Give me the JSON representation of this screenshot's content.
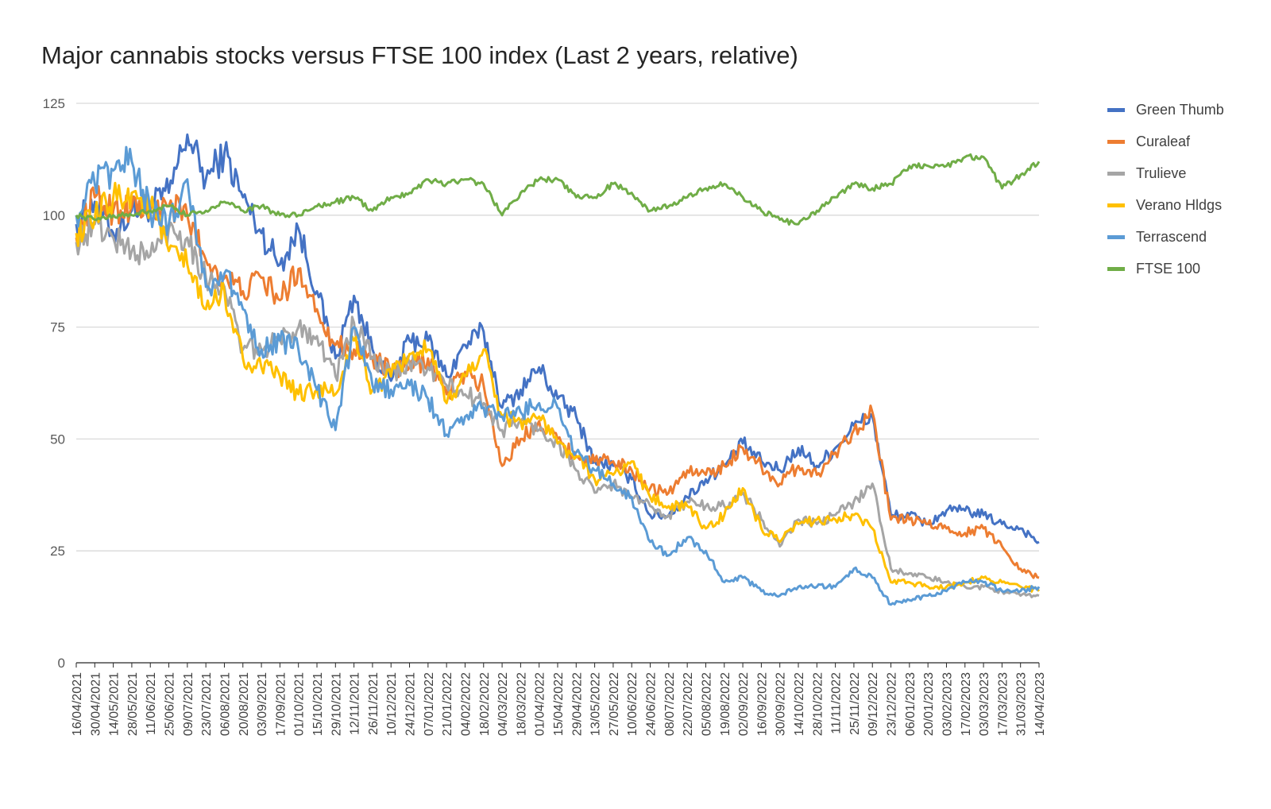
{
  "chart_data": {
    "type": "line",
    "title": "Major cannabis stocks versus FTSE 100 index (Last 2 years, relative)",
    "xlabel": "",
    "ylabel": "",
    "ylim": [
      0,
      125
    ],
    "yticks": [
      "0",
      "25",
      "50",
      "75",
      "100",
      "125"
    ],
    "grid": true,
    "legend_position": "right",
    "x": [
      "16/04/2021",
      "30/04/2021",
      "14/05/2021",
      "28/05/2021",
      "11/06/2021",
      "25/06/2021",
      "09/07/2021",
      "23/07/2021",
      "06/08/2021",
      "20/08/2021",
      "03/09/2021",
      "17/09/2021",
      "01/10/2021",
      "15/10/2021",
      "29/10/2021",
      "12/11/2021",
      "26/11/2021",
      "10/12/2021",
      "24/12/2021",
      "07/01/2022",
      "21/01/2022",
      "04/02/2022",
      "18/02/2022",
      "04/03/2022",
      "18/03/2022",
      "01/04/2022",
      "15/04/2022",
      "29/04/2022",
      "13/05/2022",
      "27/05/2022",
      "10/06/2022",
      "24/06/2022",
      "08/07/2022",
      "22/07/2022",
      "05/08/2022",
      "19/08/2022",
      "02/09/2022",
      "16/09/2022",
      "30/09/2022",
      "14/10/2022",
      "28/10/2022",
      "11/11/2022",
      "25/11/2022",
      "09/12/2022",
      "23/12/2022",
      "06/01/2023",
      "20/01/2023",
      "03/02/2023",
      "17/02/2023",
      "03/03/2023",
      "17/03/2023",
      "31/03/2023",
      "14/04/2023"
    ],
    "series": [
      {
        "name": "Green Thumb",
        "color": "#4472C4",
        "values": [
          98,
          103,
          96,
          101,
          102,
          105,
          118,
          108,
          114,
          104,
          96,
          89,
          97,
          83,
          68,
          82,
          70,
          63,
          72,
          72,
          64,
          71,
          74,
          57,
          61,
          66,
          59,
          55,
          45,
          44,
          41,
          33,
          33,
          37,
          41,
          44,
          49,
          45,
          43,
          48,
          44,
          48,
          53,
          55,
          33,
          33,
          31,
          34,
          34,
          33,
          31,
          30,
          27
        ]
      },
      {
        "name": "Curaleaf",
        "color": "#ED7D31",
        "values": [
          95,
          104,
          101,
          102,
          101,
          102,
          100,
          90,
          86,
          83,
          86,
          81,
          88,
          79,
          71,
          70,
          68,
          65,
          66,
          68,
          60,
          65,
          62,
          44,
          50,
          54,
          50,
          46,
          45,
          45,
          43,
          39,
          38,
          43,
          42,
          44,
          48,
          44,
          40,
          44,
          42,
          47,
          52,
          56,
          32,
          32,
          31,
          30,
          29,
          30,
          26,
          21,
          19
        ]
      },
      {
        "name": "Trulieve",
        "color": "#A5A5A5",
        "values": [
          94,
          98,
          95,
          92,
          91,
          97,
          95,
          86,
          84,
          70,
          70,
          72,
          75,
          73,
          64,
          76,
          68,
          64,
          67,
          66,
          62,
          60,
          58,
          52,
          54,
          52,
          49,
          43,
          38,
          40,
          37,
          35,
          33,
          36,
          35,
          35,
          38,
          32,
          26,
          32,
          31,
          33,
          36,
          40,
          21,
          20,
          19,
          18,
          17,
          17,
          16,
          15,
          15
        ]
      },
      {
        "name": "Verano Hldgs",
        "color": "#FFC000",
        "values": [
          96,
          99,
          104,
          105,
          102,
          92,
          89,
          79,
          83,
          68,
          66,
          64,
          60,
          61,
          60,
          72,
          61,
          64,
          69,
          70,
          58,
          64,
          70,
          55,
          54,
          55,
          49,
          46,
          41,
          42,
          45,
          37,
          35,
          35,
          30,
          33,
          39,
          30,
          27,
          31,
          32,
          32,
          33,
          30,
          18,
          18,
          17,
          17,
          18,
          19,
          18,
          17,
          16
        ]
      },
      {
        "name": "Terrascend",
        "color": "#5B9BD5",
        "values": [
          100,
          107,
          110,
          112,
          101,
          98,
          108,
          84,
          87,
          79,
          70,
          72,
          70,
          61,
          52,
          75,
          62,
          61,
          62,
          59,
          51,
          55,
          57,
          55,
          56,
          58,
          57,
          47,
          43,
          40,
          37,
          27,
          24,
          28,
          25,
          18,
          19,
          16,
          15,
          17,
          17,
          17,
          21,
          19,
          13,
          14,
          15,
          16,
          18,
          18,
          16,
          16,
          17
        ]
      },
      {
        "name": "FTSE 100",
        "color": "#70AD47",
        "values": [
          100,
          99,
          100,
          100,
          101,
          102,
          100,
          101,
          103,
          101,
          102,
          100,
          100,
          102,
          103,
          104,
          101,
          104,
          105,
          108,
          107,
          108,
          107,
          100,
          105,
          108,
          108,
          104,
          104,
          107,
          105,
          101,
          102,
          104,
          106,
          107,
          104,
          101,
          99,
          98,
          101,
          104,
          107,
          106,
          107,
          111,
          111,
          111,
          113,
          113,
          106,
          109,
          112
        ]
      }
    ]
  }
}
